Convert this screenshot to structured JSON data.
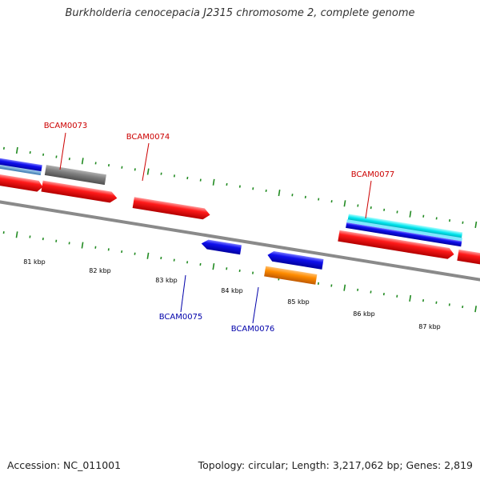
{
  "title": "Burkholderia cenocepacia J2315 chromosome 2, complete genome",
  "footer": {
    "accession": "Accession: NC_011001",
    "genome_info": "Topology: circular; Length: 3,217,062 bp; Genes: 2,819"
  },
  "kbp_labels": [
    "81 kbp",
    "82 kbp",
    "83 kbp",
    "84 kbp",
    "85 kbp",
    "86 kbp",
    "87 kbp"
  ],
  "genes": [
    {
      "id": "BCAM0073",
      "color": "#cc0000"
    },
    {
      "id": "BCAM0074",
      "color": "#cc0000"
    },
    {
      "id": "BCAM0075",
      "color": "#0000aa"
    },
    {
      "id": "BCAM0076",
      "color": "#0000aa"
    },
    {
      "id": "BCAM0077",
      "color": "#cc0000"
    }
  ],
  "colors": {
    "cds_forward": "#ff1a1a",
    "cds_reverse": "#0a0aee",
    "pseudo": "#808080",
    "orange_feature": "#ff8c00",
    "cyan_feature": "#00e5ee",
    "steelblue_feature": "#4a90c8",
    "backbone": "#8a8a8a",
    "tick": "#228b22",
    "forward_label": "#cc0000",
    "reverse_label": "#0000aa"
  }
}
